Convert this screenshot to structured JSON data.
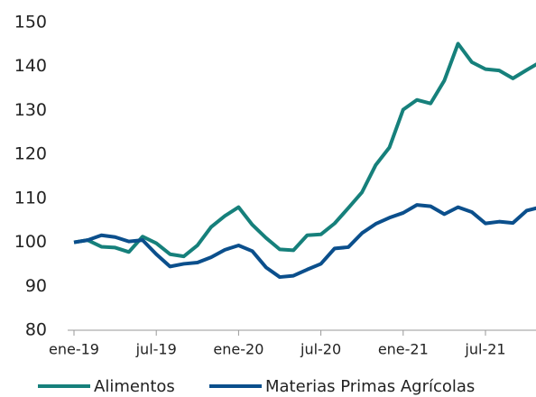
{
  "chart_data": {
    "type": "line",
    "categories": [
      "ene-19",
      null,
      null,
      null,
      null,
      null,
      "jul-19",
      null,
      null,
      null,
      null,
      null,
      "ene-20",
      null,
      null,
      null,
      null,
      null,
      "jul-20",
      null,
      null,
      null,
      null,
      null,
      "ene-21",
      null,
      null,
      null,
      null,
      null,
      "jul-21",
      null,
      null,
      null,
      null
    ],
    "series": [
      {
        "name": "Alimentos",
        "color": "#16807b",
        "values": [
          100,
          100.5,
          99,
          98.8,
          97.8,
          101.3,
          99.8,
          97.3,
          96.8,
          99.3,
          103.5,
          106,
          108,
          104,
          101,
          98.4,
          98.2,
          101.6,
          101.8,
          104.3,
          107.8,
          111.4,
          117.6,
          121.6,
          130.2,
          132.4,
          131.6,
          136.8,
          145.2,
          141,
          139.4,
          139.1,
          137.3,
          139.2,
          141
        ]
      },
      {
        "name": "Materias Primas Agrícolas",
        "color": "#0b4f8c",
        "values": [
          100,
          100.5,
          101.6,
          101.2,
          100.2,
          100.5,
          97.3,
          94.5,
          95.1,
          95.4,
          96.6,
          98.3,
          99.3,
          98,
          94.3,
          92.1,
          92.4,
          93.8,
          95.1,
          98.6,
          98.9,
          102.1,
          104.2,
          105.6,
          106.7,
          108.5,
          108.2,
          106.4,
          108,
          106.9,
          104.3,
          104.7,
          104.4,
          107.2,
          108
        ]
      }
    ],
    "ylim": [
      80,
      150
    ],
    "yticks": [
      80,
      90,
      100,
      110,
      120,
      130,
      140,
      150
    ],
    "grid": false,
    "legend": "bottom"
  }
}
